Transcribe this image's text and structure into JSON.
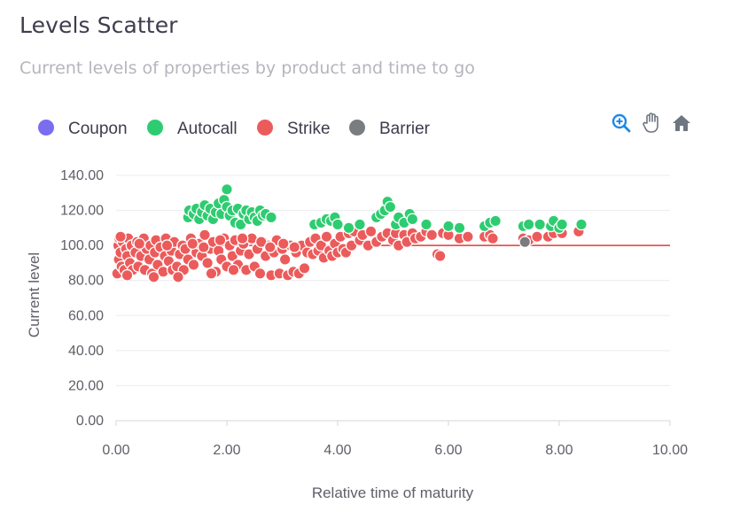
{
  "header": {
    "title": "Levels Scatter",
    "subtitle": "Current levels of properties by product and time to go"
  },
  "toolbar": {
    "zoom_icon": "zoom-in-icon",
    "pan_icon": "hand-pan-icon",
    "reset_icon": "home-icon"
  },
  "colors": {
    "coupon": "#7b6cf0",
    "autocall": "#2ecc71",
    "strike": "#ec5b5b",
    "barrier": "#7a7c80",
    "reference_line": "#e53935",
    "toolbar_blue": "#1e88e5",
    "toolbar_gray": "#6e7681"
  },
  "chart_data": {
    "type": "scatter",
    "xlabel": "Relative time of maturity",
    "ylabel": "Current level",
    "xlim": [
      0,
      10
    ],
    "ylim": [
      0,
      140
    ],
    "xticks": [
      "0.00",
      "2.00",
      "4.00",
      "6.00",
      "8.00",
      "10.00"
    ],
    "yticks": [
      "0.00",
      "20.00",
      "40.00",
      "60.00",
      "80.00",
      "100.00",
      "120.00",
      "140.00"
    ],
    "grid": "horizontal",
    "legend_position": "top-left",
    "reference_line": {
      "y": 100
    },
    "series": [
      {
        "name": "Coupon",
        "color": "#7b6cf0",
        "points": []
      },
      {
        "name": "Autocall",
        "color": "#2ecc71",
        "points": [
          [
            1.3,
            116
          ],
          [
            1.32,
            120
          ],
          [
            1.4,
            118
          ],
          [
            1.45,
            121
          ],
          [
            1.5,
            115
          ],
          [
            1.55,
            119
          ],
          [
            1.6,
            123
          ],
          [
            1.65,
            117
          ],
          [
            1.7,
            121
          ],
          [
            1.75,
            115
          ],
          [
            1.8,
            119
          ],
          [
            1.85,
            124
          ],
          [
            1.9,
            118
          ],
          [
            1.95,
            126
          ],
          [
            2.0,
            132
          ],
          [
            2.0,
            122
          ],
          [
            2.05,
            117
          ],
          [
            2.1,
            120
          ],
          [
            2.15,
            113
          ],
          [
            2.2,
            121
          ],
          [
            2.25,
            112
          ],
          [
            2.3,
            118
          ],
          [
            2.35,
            120
          ],
          [
            2.4,
            115
          ],
          [
            2.45,
            119
          ],
          [
            2.5,
            116
          ],
          [
            2.55,
            114
          ],
          [
            2.6,
            120
          ],
          [
            2.65,
            117
          ],
          [
            2.7,
            118
          ],
          [
            2.8,
            116
          ],
          [
            3.58,
            112
          ],
          [
            3.7,
            113
          ],
          [
            3.8,
            115
          ],
          [
            3.88,
            114
          ],
          [
            3.95,
            116
          ],
          [
            4.0,
            112
          ],
          [
            4.2,
            110
          ],
          [
            4.4,
            112
          ],
          [
            4.7,
            116
          ],
          [
            4.78,
            118
          ],
          [
            4.85,
            120
          ],
          [
            4.9,
            125
          ],
          [
            4.95,
            122
          ],
          [
            5.05,
            112
          ],
          [
            5.1,
            116
          ],
          [
            5.2,
            113
          ],
          [
            5.3,
            118
          ],
          [
            5.35,
            115
          ],
          [
            5.6,
            112
          ],
          [
            6.0,
            111
          ],
          [
            6.2,
            110
          ],
          [
            6.65,
            111
          ],
          [
            6.75,
            113
          ],
          [
            6.85,
            114
          ],
          [
            7.35,
            111
          ],
          [
            7.45,
            112
          ],
          [
            7.65,
            112
          ],
          [
            7.85,
            111
          ],
          [
            7.9,
            114
          ],
          [
            8.0,
            110
          ],
          [
            8.05,
            112
          ],
          [
            8.4,
            112
          ]
        ]
      },
      {
        "name": "Strike",
        "color": "#ec5b5b",
        "points": [
          [
            0.02,
            84
          ],
          [
            0.04,
            100
          ],
          [
            0.05,
            92
          ],
          [
            0.06,
            104
          ],
          [
            0.08,
            96
          ],
          [
            0.1,
            88
          ],
          [
            0.12,
            102
          ],
          [
            0.15,
            86
          ],
          [
            0.18,
            98
          ],
          [
            0.2,
            94
          ],
          [
            0.22,
            104
          ],
          [
            0.25,
            90
          ],
          [
            0.28,
            100
          ],
          [
            0.3,
            86
          ],
          [
            0.35,
            96
          ],
          [
            0.38,
            102
          ],
          [
            0.4,
            88
          ],
          [
            0.45,
            94
          ],
          [
            0.5,
            104
          ],
          [
            0.52,
            86
          ],
          [
            0.55,
            98
          ],
          [
            0.6,
            92
          ],
          [
            0.62,
            100
          ],
          [
            0.65,
            84
          ],
          [
            0.7,
            96
          ],
          [
            0.72,
            103
          ],
          [
            0.75,
            89
          ],
          [
            0.8,
            99
          ],
          [
            0.85,
            85
          ],
          [
            0.88,
            94
          ],
          [
            0.9,
            104
          ],
          [
            0.95,
            91
          ],
          [
            1.0,
            97
          ],
          [
            1.02,
            86
          ],
          [
            1.05,
            102
          ],
          [
            1.1,
            88
          ],
          [
            1.15,
            95
          ],
          [
            1.2,
            100
          ],
          [
            1.22,
            86
          ],
          [
            1.25,
            98
          ],
          [
            1.3,
            92
          ],
          [
            1.35,
            104
          ],
          [
            1.4,
            89
          ],
          [
            1.45,
            96
          ],
          [
            1.5,
            101
          ],
          [
            1.55,
            94
          ],
          [
            1.6,
            106
          ],
          [
            1.65,
            90
          ],
          [
            1.7,
            98
          ],
          [
            1.75,
            102
          ],
          [
            1.8,
            85
          ],
          [
            1.85,
            97
          ],
          [
            1.9,
            92
          ],
          [
            1.95,
            104
          ],
          [
            2.0,
            88
          ],
          [
            2.05,
            100
          ],
          [
            2.1,
            94
          ],
          [
            2.15,
            103
          ],
          [
            2.2,
            89
          ],
          [
            2.25,
            97
          ],
          [
            2.3,
            101
          ],
          [
            2.35,
            86
          ],
          [
            2.4,
            95
          ],
          [
            2.45,
            104
          ],
          [
            2.5,
            88
          ],
          [
            2.55,
            98
          ],
          [
            2.6,
            84
          ],
          [
            2.65,
            102
          ],
          [
            2.7,
            94
          ],
          [
            2.75,
            100
          ],
          [
            2.8,
            83
          ],
          [
            2.85,
            96
          ],
          [
            2.9,
            103
          ],
          [
            2.95,
            84
          ],
          [
            3.0,
            98
          ],
          [
            3.05,
            92
          ],
          [
            3.1,
            83
          ],
          [
            3.15,
            100
          ],
          [
            3.2,
            85
          ],
          [
            3.25,
            96
          ],
          [
            3.3,
            84
          ],
          [
            3.35,
            100
          ],
          [
            3.4,
            87
          ],
          [
            3.45,
            96
          ],
          [
            3.5,
            102
          ],
          [
            3.55,
            95
          ],
          [
            3.6,
            104
          ],
          [
            3.65,
            97
          ],
          [
            3.7,
            100
          ],
          [
            3.75,
            93
          ],
          [
            3.8,
            105
          ],
          [
            3.85,
            97
          ],
          [
            3.9,
            94
          ],
          [
            3.95,
            101
          ],
          [
            4.0,
            96
          ],
          [
            4.05,
            105
          ],
          [
            4.1,
            98
          ],
          [
            4.15,
            96
          ],
          [
            4.2,
            107
          ],
          [
            4.25,
            100
          ],
          [
            4.3,
            108
          ],
          [
            4.4,
            103
          ],
          [
            4.45,
            106
          ],
          [
            4.55,
            100
          ],
          [
            4.6,
            108
          ],
          [
            4.7,
            102
          ],
          [
            4.8,
            105
          ],
          [
            4.9,
            107
          ],
          [
            5.0,
            103
          ],
          [
            5.05,
            107
          ],
          [
            5.1,
            100
          ],
          [
            5.2,
            106
          ],
          [
            5.25,
            102
          ],
          [
            5.35,
            107
          ],
          [
            5.4,
            104
          ],
          [
            5.5,
            105
          ],
          [
            5.6,
            108
          ],
          [
            5.7,
            106
          ],
          [
            5.8,
            95
          ],
          [
            5.85,
            94
          ],
          [
            5.9,
            107
          ],
          [
            6.0,
            106
          ],
          [
            6.2,
            104
          ],
          [
            6.35,
            105
          ],
          [
            6.65,
            105
          ],
          [
            6.75,
            106
          ],
          [
            6.8,
            104
          ],
          [
            7.35,
            104
          ],
          [
            7.45,
            103
          ],
          [
            7.6,
            105
          ],
          [
            7.8,
            105
          ],
          [
            7.9,
            107
          ],
          [
            8.05,
            107
          ],
          [
            8.35,
            108
          ],
          [
            0.08,
            105
          ],
          [
            0.2,
            83
          ],
          [
            0.42,
            101
          ],
          [
            0.68,
            82
          ],
          [
            0.92,
            100
          ],
          [
            1.12,
            82
          ],
          [
            1.38,
            101
          ],
          [
            1.58,
            99
          ],
          [
            1.72,
            84
          ],
          [
            1.88,
            103
          ],
          [
            2.12,
            86
          ],
          [
            2.28,
            104
          ],
          [
            2.62,
            102
          ],
          [
            2.78,
            99
          ],
          [
            3.02,
            101
          ],
          [
            3.22,
            99
          ]
        ]
      },
      {
        "name": "Barrier",
        "color": "#7a7c80",
        "points": [
          [
            7.38,
            102
          ]
        ]
      }
    ]
  }
}
